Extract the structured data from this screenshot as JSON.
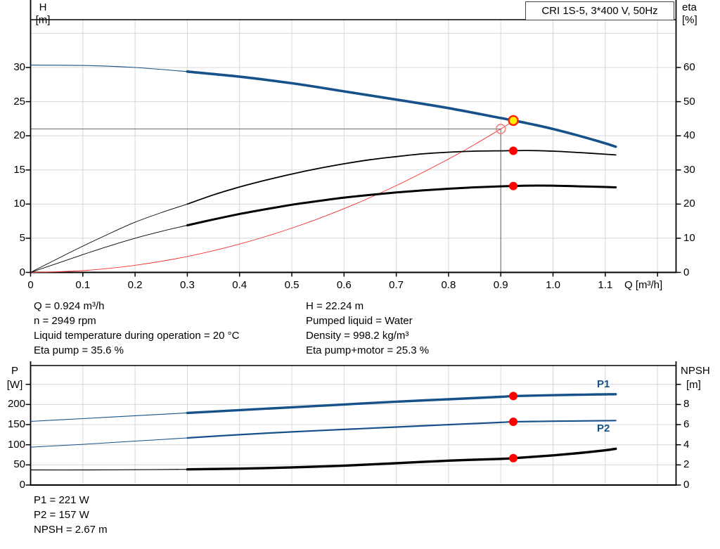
{
  "title_box": {
    "label": "CRI 1S-5, 3*400 V, 50Hz"
  },
  "colors": {
    "curve_blue": "#17518a",
    "black": "#000000",
    "red_dot": "#ff0000",
    "system_red": "#f03030",
    "open_circle": "#f08080",
    "yellow_fill": "#ffee00",
    "yellow_ring": "#ff2200",
    "grid": "#d8d8d8",
    "duty_gray": "#7a7a7a",
    "axis": "#000000"
  },
  "chart_data": {
    "note": "see charts[] below",
    "type": "line"
  },
  "charts": [
    {
      "name": "qh-eta-chart",
      "type": "line",
      "x_axis": {
        "label": "Q [m³/h]",
        "min": 0,
        "max": 1.2355,
        "labeled_ticks": [
          0,
          0.1,
          0.2,
          0.3,
          0.4,
          0.5,
          0.6,
          0.7,
          0.8,
          0.9,
          1.0,
          1.1
        ],
        "tick_label_strings": [
          "0",
          "0.1",
          "0.2",
          "0.3",
          "0.4",
          "0.5",
          "0.6",
          "0.7",
          "0.8",
          "0.9",
          "1.0",
          "1.1"
        ],
        "unlabeled_ticks": [
          1.2
        ],
        "grid_values": [
          0.1,
          0.2,
          0.3,
          0.4,
          0.5,
          0.6,
          0.7,
          0.8,
          0.9,
          1.0,
          1.1,
          1.2
        ]
      },
      "y_left": {
        "label": "H",
        "unit": "[m]",
        "min": 0,
        "max": 37,
        "labeled_ticks": [
          0,
          5,
          10,
          15,
          20,
          25,
          30
        ],
        "unlabeled_ticks": [],
        "grid_values": [
          5,
          10,
          15,
          20,
          25,
          30,
          35
        ]
      },
      "y_right": {
        "label": "eta",
        "unit": "[%]",
        "min": 0,
        "max": 74,
        "labeled_ticks": [
          0,
          10,
          20,
          30,
          40,
          50,
          60
        ],
        "unlabeled_ticks": []
      },
      "duty_reference": {
        "h_value": 21,
        "q_value": 0.9
      },
      "series": [
        {
          "name": "system-curve",
          "axis": "left",
          "color_key": "system_red",
          "width_thin": 0.9,
          "width_thick": 0.9,
          "thick_from": 0,
          "points": [
            [
              0,
              0
            ],
            [
              0.1,
              0.26
            ],
            [
              0.2,
              1.04
            ],
            [
              0.3,
              2.33
            ],
            [
              0.4,
              4.15
            ],
            [
              0.5,
              6.48
            ],
            [
              0.6,
              9.33
            ],
            [
              0.7,
              12.71
            ],
            [
              0.8,
              16.6
            ],
            [
              0.85,
              18.73
            ],
            [
              0.9,
              21.0
            ],
            [
              0.927,
              22.3
            ]
          ]
        },
        {
          "name": "eta-pump-curve",
          "axis": "right",
          "color_key": "black",
          "width_thin": 0.9,
          "width_thick": 1.8,
          "thick_from": 0.3,
          "points": [
            [
              0,
              0
            ],
            [
              0.05,
              3.9
            ],
            [
              0.1,
              7.7
            ],
            [
              0.15,
              11.3
            ],
            [
              0.2,
              14.7
            ],
            [
              0.25,
              17.5
            ],
            [
              0.3,
              20.0
            ],
            [
              0.35,
              22.7
            ],
            [
              0.4,
              25.0
            ],
            [
              0.45,
              27.0
            ],
            [
              0.5,
              28.8
            ],
            [
              0.55,
              30.4
            ],
            [
              0.6,
              31.8
            ],
            [
              0.65,
              33.0
            ],
            [
              0.7,
              33.9
            ],
            [
              0.75,
              34.7
            ],
            [
              0.8,
              35.2
            ],
            [
              0.85,
              35.5
            ],
            [
              0.9,
              35.6
            ],
            [
              0.95,
              35.7
            ],
            [
              1.0,
              35.5
            ],
            [
              1.05,
              35.1
            ],
            [
              1.1,
              34.6
            ],
            [
              1.12,
              34.4
            ]
          ]
        },
        {
          "name": "eta-pump-motor-curve",
          "axis": "right",
          "color_key": "black",
          "width_thin": 0.9,
          "width_thick": 3.0,
          "thick_from": 0.3,
          "points": [
            [
              0,
              0
            ],
            [
              0.05,
              2.6
            ],
            [
              0.1,
              5.2
            ],
            [
              0.15,
              7.7
            ],
            [
              0.2,
              10.0
            ],
            [
              0.25,
              12.0
            ],
            [
              0.3,
              13.8
            ],
            [
              0.35,
              15.5
            ],
            [
              0.4,
              17.1
            ],
            [
              0.45,
              18.5
            ],
            [
              0.5,
              19.8
            ],
            [
              0.55,
              20.9
            ],
            [
              0.6,
              21.9
            ],
            [
              0.65,
              22.7
            ],
            [
              0.7,
              23.4
            ],
            [
              0.75,
              24.0
            ],
            [
              0.8,
              24.5
            ],
            [
              0.85,
              24.9
            ],
            [
              0.9,
              25.2
            ],
            [
              0.95,
              25.4
            ],
            [
              1.0,
              25.4
            ],
            [
              1.05,
              25.2
            ],
            [
              1.1,
              25.0
            ],
            [
              1.12,
              24.9
            ]
          ]
        },
        {
          "name": "pump-curve-qh",
          "axis": "left",
          "color_key": "curve_blue",
          "width_thin": 1.1,
          "width_thick": 3.6,
          "thick_from": 0.3,
          "points": [
            [
              0,
              30.35
            ],
            [
              0.1,
              30.3
            ],
            [
              0.2,
              30.0
            ],
            [
              0.3,
              29.4
            ],
            [
              0.4,
              28.65
            ],
            [
              0.5,
              27.7
            ],
            [
              0.6,
              26.5
            ],
            [
              0.7,
              25.3
            ],
            [
              0.8,
              24.05
            ],
            [
              0.9,
              22.6
            ],
            [
              0.95,
              21.85
            ],
            [
              1.0,
              21.0
            ],
            [
              1.05,
              20.0
            ],
            [
              1.1,
              18.9
            ],
            [
              1.12,
              18.4
            ]
          ]
        }
      ],
      "markers": [
        {
          "name": "rated-duty-point",
          "style": "open",
          "q": 0.9,
          "value": 21,
          "axis": "left"
        },
        {
          "name": "operating-point",
          "style": "yellow",
          "q": 0.924,
          "value": 22.24,
          "axis": "left"
        },
        {
          "name": "eta-pump-point",
          "style": "red",
          "q": 0.924,
          "value": 35.6,
          "axis": "right"
        },
        {
          "name": "eta-pump-motor-point",
          "style": "red",
          "q": 0.924,
          "value": 25.3,
          "axis": "right"
        }
      ]
    },
    {
      "name": "power-npsh-chart",
      "type": "line",
      "x_axis": {
        "label": "",
        "min": 0,
        "max": 1.2355,
        "labeled_ticks": [],
        "tick_label_strings": [],
        "unlabeled_ticks": [],
        "grid_values": [
          0.1,
          0.2,
          0.3,
          0.4,
          0.5,
          0.6,
          0.7,
          0.8,
          0.9,
          1.0,
          1.1,
          1.2
        ]
      },
      "y_left": {
        "label": "P",
        "unit": "[W]",
        "min": 0,
        "max": 296.7,
        "labeled_ticks": [
          0,
          50,
          100,
          150,
          200
        ],
        "unlabeled_ticks": [
          250
        ],
        "grid_values": [
          50,
          100,
          150,
          200,
          250
        ]
      },
      "y_right": {
        "label": "NPSH",
        "unit": "[m]",
        "min": 0,
        "max": 11.87,
        "labeled_ticks": [
          0,
          2,
          4,
          6,
          8
        ],
        "unlabeled_ticks": [
          10
        ]
      },
      "series": [
        {
          "name": "p1-curve",
          "label": "P1",
          "axis": "left",
          "color_key": "curve_blue",
          "width_thin": 1.1,
          "width_thick": 3.4,
          "thick_from": 0.3,
          "points": [
            [
              0,
              158
            ],
            [
              0.1,
              165
            ],
            [
              0.2,
              172
            ],
            [
              0.3,
              179
            ],
            [
              0.4,
              186
            ],
            [
              0.5,
              193
            ],
            [
              0.6,
              200
            ],
            [
              0.7,
              207
            ],
            [
              0.8,
              213
            ],
            [
              0.9,
              219
            ],
            [
              0.924,
              221
            ],
            [
              1.0,
              223
            ],
            [
              1.06,
              224.5
            ],
            [
              1.12,
              225.5
            ]
          ]
        },
        {
          "name": "p2-curve",
          "label": "P2",
          "axis": "left",
          "color_key": "curve_blue",
          "width_thin": 1.0,
          "width_thick": 2.2,
          "thick_from": 0.3,
          "points": [
            [
              0,
              94
            ],
            [
              0.1,
              101
            ],
            [
              0.2,
              109
            ],
            [
              0.3,
              117
            ],
            [
              0.4,
              125
            ],
            [
              0.5,
              132
            ],
            [
              0.6,
              138
            ],
            [
              0.7,
              144
            ],
            [
              0.8,
              150
            ],
            [
              0.9,
              155.5
            ],
            [
              0.924,
              157
            ],
            [
              1.0,
              158.5
            ],
            [
              1.12,
              160
            ]
          ]
        },
        {
          "name": "npsh-curve",
          "axis": "right",
          "color_key": "black",
          "width_thin": 1.2,
          "width_thick": 3.4,
          "thick_from": 0.3,
          "points": [
            [
              0,
              1.5
            ],
            [
              0.1,
              1.5
            ],
            [
              0.2,
              1.52
            ],
            [
              0.3,
              1.56
            ],
            [
              0.4,
              1.63
            ],
            [
              0.5,
              1.75
            ],
            [
              0.6,
              1.93
            ],
            [
              0.7,
              2.17
            ],
            [
              0.8,
              2.42
            ],
            [
              0.9,
              2.6
            ],
            [
              0.924,
              2.67
            ],
            [
              1.0,
              2.95
            ],
            [
              1.05,
              3.18
            ],
            [
              1.1,
              3.45
            ],
            [
              1.12,
              3.6
            ]
          ]
        }
      ],
      "markers": [
        {
          "name": "p1-point",
          "style": "red",
          "q": 0.924,
          "value": 221,
          "axis": "left"
        },
        {
          "name": "p2-point",
          "style": "red",
          "q": 0.924,
          "value": 157,
          "axis": "left"
        },
        {
          "name": "npsh-point",
          "style": "red",
          "q": 0.924,
          "value": 2.67,
          "axis": "right"
        }
      ]
    }
  ],
  "info_top": {
    "left": [
      "Q = 0.924 m³/h",
      "n = 2949 rpm",
      "Liquid temperature during operation = 20 °C",
      "Eta pump = 35.6 %"
    ],
    "right": [
      "H = 22.24 m",
      "Pumped liquid = Water",
      "Density = 998.2 kg/m³",
      "Eta pump+motor = 25.3 %"
    ]
  },
  "info_bottom": {
    "lines": [
      "P1 = 221 W",
      "P2 = 157 W",
      "NPSH = 2.67 m"
    ]
  }
}
